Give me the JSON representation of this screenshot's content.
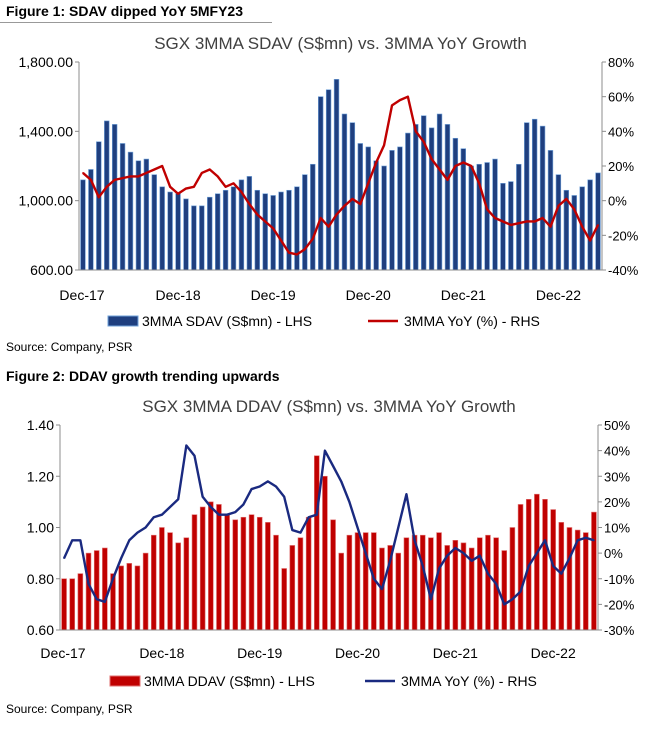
{
  "figure1": {
    "caption": "Figure 1: SDAV dipped YoY 5MFY23",
    "source": "Source: Company, PSR"
  },
  "figure2": {
    "caption": "Figure 2: DDAV growth trending upwards",
    "source": "Source: Company, PSR"
  },
  "colors": {
    "bar1_fill": "#1f3f7f",
    "bar1_edge": "#6fa0d8",
    "line1": "#c00000",
    "bar2_fill": "#c00000",
    "bar2_edge": "#e07070",
    "line2": "#1a2a80"
  },
  "chart_data": [
    {
      "type": "bar",
      "title": "SGX 3MMA SDAV (S$mn) vs. 3MMA YoY Growth",
      "x_tick_labels": [
        "Dec-17",
        "Dec-18",
        "Dec-19",
        "Dec-20",
        "Dec-21",
        "Dec-22"
      ],
      "ylim": [
        600,
        1800
      ],
      "y_ticks": [
        "600.00",
        "1,000.00",
        "1,400.00",
        "1,800.00"
      ],
      "y2lim": [
        -40,
        80
      ],
      "y2_ticks": [
        "-40%",
        "-20%",
        "0%",
        "20%",
        "40%",
        "60%",
        "80%"
      ],
      "grid": false,
      "legend_position": "bottom",
      "series": [
        {
          "name": "3MMA SDAV (S$mn) - LHS",
          "kind": "bar",
          "axis": "left",
          "values": [
            1120,
            1180,
            1340,
            1460,
            1440,
            1330,
            1280,
            1230,
            1240,
            1150,
            1080,
            1050,
            1040,
            1010,
            970,
            970,
            1020,
            1040,
            1060,
            1080,
            1120,
            1140,
            1060,
            1040,
            1030,
            1050,
            1060,
            1080,
            1150,
            1210,
            1600,
            1640,
            1700,
            1500,
            1450,
            1330,
            1310,
            1230,
            1200,
            1290,
            1310,
            1390,
            1440,
            1490,
            1420,
            1500,
            1440,
            1360,
            1300,
            1200,
            1210,
            1220,
            1240,
            1100,
            1110,
            1210,
            1450,
            1470,
            1430,
            1290,
            1150,
            1060,
            1030,
            1080,
            1120,
            1160
          ]
        },
        {
          "name": "3MMA YoY (%) - RHS",
          "kind": "line",
          "axis": "right",
          "values": [
            16,
            12,
            2,
            8,
            12,
            13,
            14,
            14,
            16,
            18,
            20,
            8,
            4,
            7,
            8,
            16,
            18,
            14,
            8,
            10,
            5,
            -2,
            -8,
            -12,
            -16,
            -23,
            -30,
            -31,
            -28,
            -22,
            -10,
            -15,
            -8,
            -3,
            1,
            -2,
            10,
            22,
            32,
            55,
            58,
            60,
            40,
            34,
            24,
            18,
            12,
            20,
            22,
            20,
            10,
            -5,
            -10,
            -12,
            -14,
            -13,
            -12,
            -12,
            -10,
            -15,
            -3,
            1,
            -5,
            -15,
            -23,
            -14
          ]
        }
      ]
    },
    {
      "type": "bar",
      "title": "SGX 3MMA DDAV (S$mn) vs. 3MMA YoY Growth",
      "x_tick_labels": [
        "Dec-17",
        "Dec-18",
        "Dec-19",
        "Dec-20",
        "Dec-21",
        "Dec-22"
      ],
      "ylim": [
        0.6,
        1.4
      ],
      "y_ticks": [
        "0.60",
        "0.80",
        "1.00",
        "1.20",
        "1.40"
      ],
      "y2lim": [
        -30,
        50
      ],
      "y2_ticks": [
        "-30%",
        "-20%",
        "-10%",
        "0%",
        "10%",
        "20%",
        "30%",
        "40%",
        "50%"
      ],
      "grid": false,
      "legend_position": "bottom",
      "series": [
        {
          "name": "3MMA DDAV (S$mn) - LHS",
          "kind": "bar",
          "axis": "left",
          "values": [
            0.8,
            0.8,
            0.82,
            0.9,
            0.91,
            0.92,
            0.82,
            0.85,
            0.86,
            0.85,
            0.9,
            0.97,
            1.0,
            0.98,
            0.94,
            0.96,
            1.05,
            1.08,
            1.1,
            1.09,
            1.05,
            1.03,
            1.04,
            1.05,
            1.04,
            1.02,
            0.97,
            0.84,
            0.93,
            0.96,
            1.04,
            1.28,
            1.2,
            1.03,
            0.9,
            0.97,
            0.98,
            0.98,
            0.98,
            0.92,
            0.93,
            0.9,
            0.96,
            0.97,
            0.97,
            0.96,
            0.98,
            0.93,
            0.95,
            0.94,
            0.92,
            0.96,
            0.97,
            0.96,
            0.91,
            1.0,
            1.09,
            1.11,
            1.13,
            1.11,
            1.07,
            1.02,
            1.0,
            0.99,
            0.98,
            1.06
          ]
        },
        {
          "name": "3MMA YoY (%) - RHS",
          "kind": "line",
          "axis": "right",
          "values": [
            -2,
            5,
            5,
            -12,
            -18,
            -19,
            -10,
            -2,
            5,
            8,
            10,
            14,
            15,
            18,
            21,
            42,
            38,
            22,
            18,
            15,
            15,
            16,
            19,
            25,
            26,
            28,
            26,
            22,
            9,
            8,
            14,
            15,
            40,
            34,
            28,
            20,
            10,
            0,
            -10,
            -14,
            -3,
            10,
            23,
            5,
            -5,
            -18,
            -6,
            -1,
            2,
            0,
            -3,
            -1,
            -8,
            -12,
            -20,
            -18,
            -15,
            -5,
            0,
            5,
            -5,
            -8,
            -2,
            5,
            6,
            5
          ]
        }
      ]
    }
  ]
}
